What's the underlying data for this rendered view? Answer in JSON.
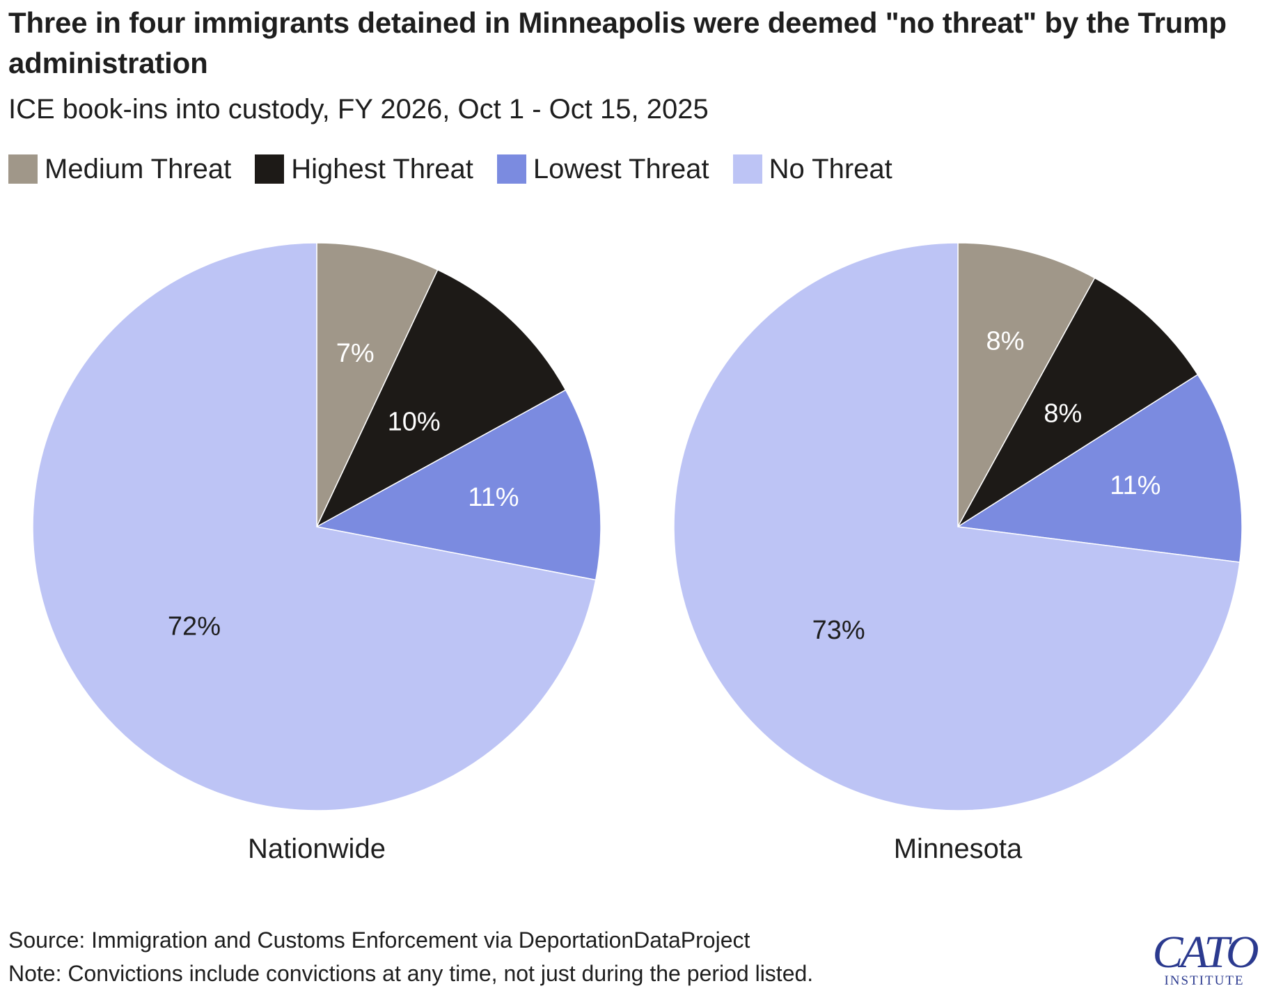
{
  "title": "Three in four immigrants detained in Minneapolis were deemed \"no threat\" by the Trump administration",
  "subtitle": "ICE book-ins into custody, FY 2026, Oct 1 - Oct 15, 2025",
  "legend": [
    {
      "label": "Medium Threat",
      "color": "#a09789"
    },
    {
      "label": "Highest Threat",
      "color": "#1d1a17"
    },
    {
      "label": "Lowest Threat",
      "color": "#7b8be0"
    },
    {
      "label": "No Threat",
      "color": "#bdc4f5"
    }
  ],
  "chart_data": [
    {
      "type": "pie",
      "label": "Nationwide",
      "slices": [
        {
          "category": "Medium Threat",
          "value": 7,
          "label": "7%",
          "color": "#a09789",
          "label_color": "#ffffff"
        },
        {
          "category": "Highest Threat",
          "value": 10,
          "label": "10%",
          "color": "#1d1a17",
          "label_color": "#ffffff"
        },
        {
          "category": "Lowest Threat",
          "value": 11,
          "label": "11%",
          "color": "#7b8be0",
          "label_color": "#ffffff"
        },
        {
          "category": "No Threat",
          "value": 72,
          "label": "72%",
          "color": "#bdc4f5",
          "label_color": "#1e1e1e"
        }
      ]
    },
    {
      "type": "pie",
      "label": "Minnesota",
      "slices": [
        {
          "category": "Medium Threat",
          "value": 8,
          "label": "8%",
          "color": "#a09789",
          "label_color": "#ffffff"
        },
        {
          "category": "Highest Threat",
          "value": 8,
          "label": "8%",
          "color": "#1d1a17",
          "label_color": "#ffffff"
        },
        {
          "category": "Lowest Threat",
          "value": 11,
          "label": "11%",
          "color": "#7b8be0",
          "label_color": "#ffffff"
        },
        {
          "category": "No Threat",
          "value": 73,
          "label": "73%",
          "color": "#bdc4f5",
          "label_color": "#1e1e1e"
        }
      ]
    }
  ],
  "footer": {
    "source": "Source: Immigration and Customs Enforcement via DeportationDataProject",
    "note": "Note: Convictions include convictions at any time, not just during the period listed."
  },
  "logo": {
    "main": "CATO",
    "sub": "INSTITUTE"
  }
}
